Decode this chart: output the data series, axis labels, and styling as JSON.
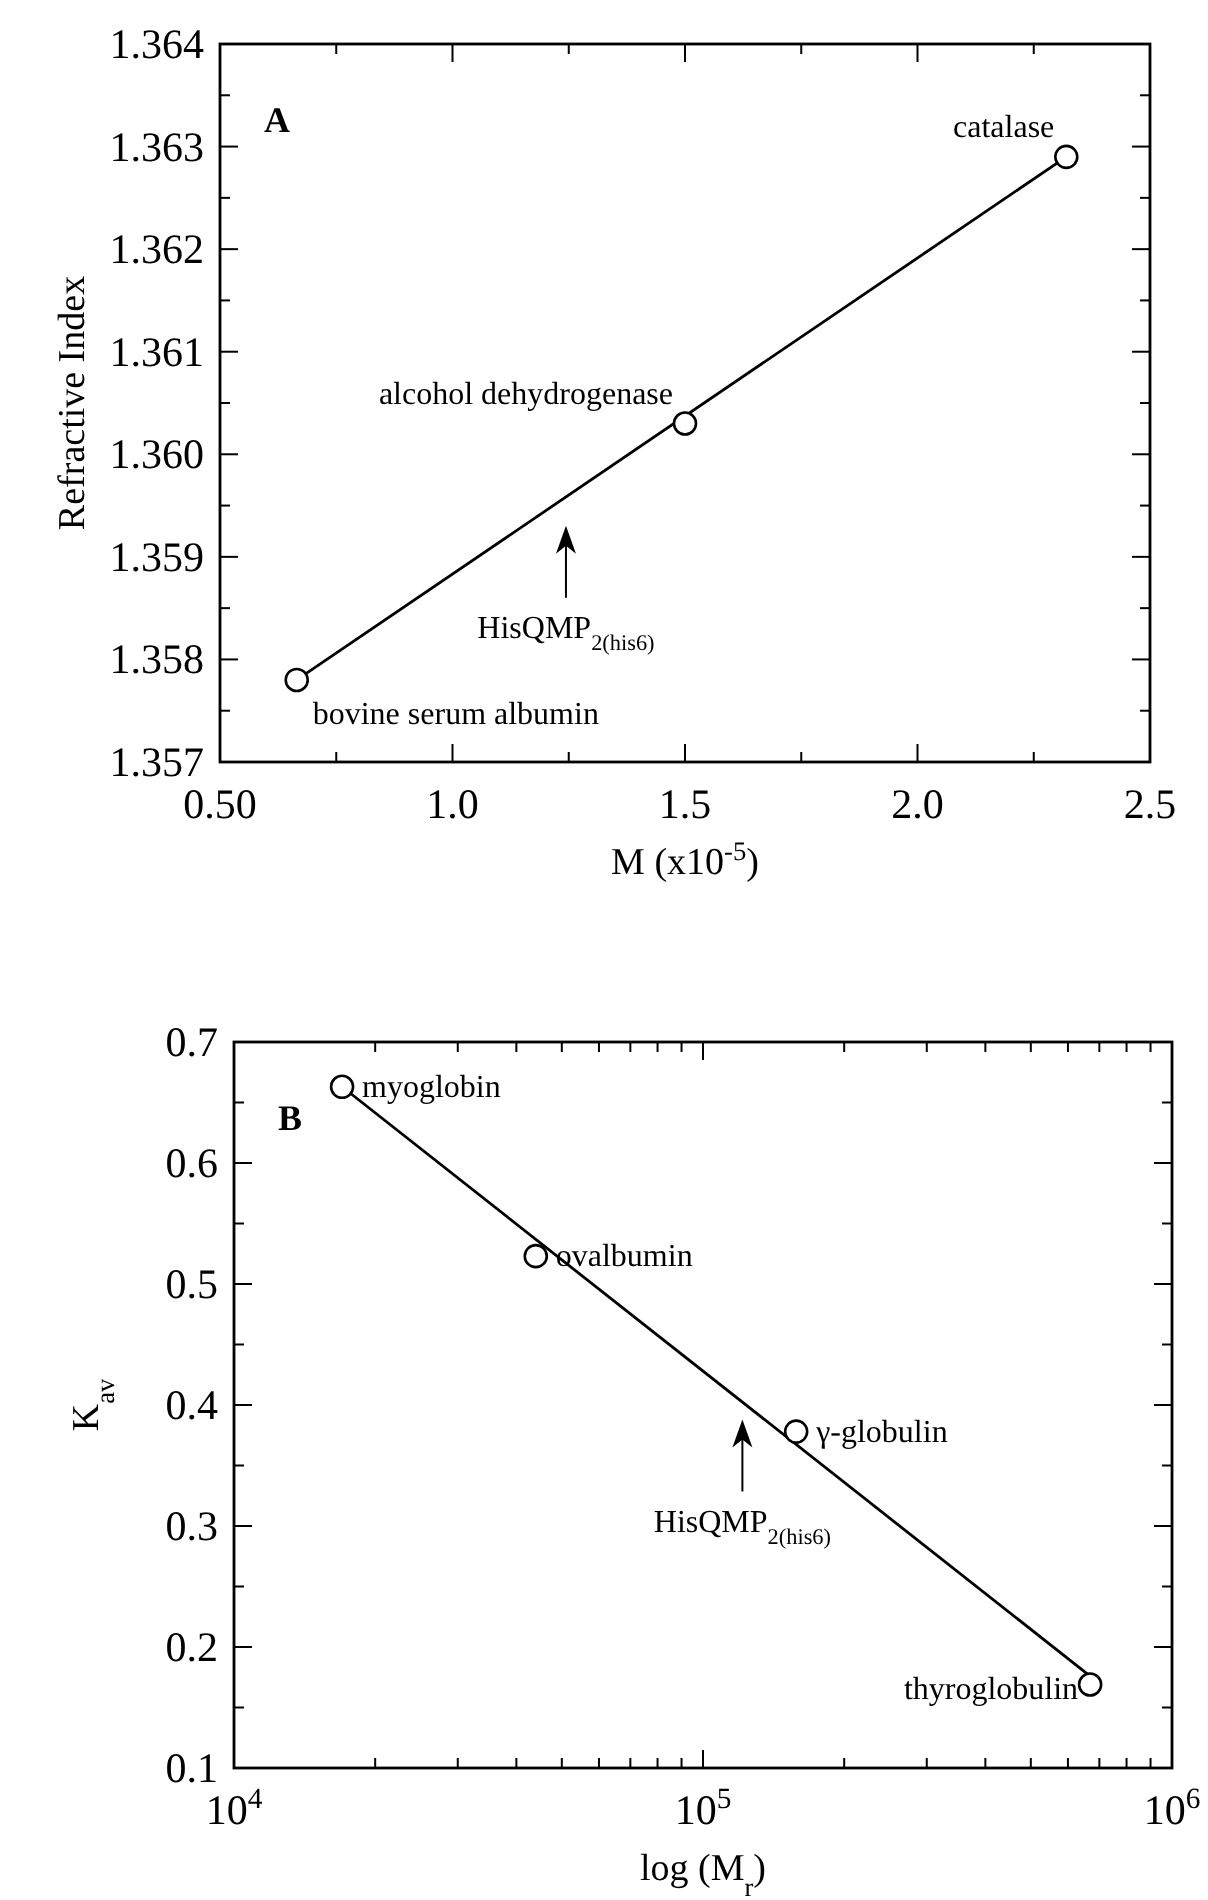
{
  "chart_data": [
    {
      "type": "scatter",
      "xlabel": "M  (x10$^{-5}$)",
      "ylabel": "Refractive Index",
      "xlim": [
        0.5,
        2.5
      ],
      "ylim": [
        1.357,
        1.364
      ],
      "xticks": [
        {
          "value": 0.5,
          "label": "0.50"
        },
        {
          "value": 1.0,
          "label": "1.0"
        },
        {
          "value": 1.5,
          "label": "1.5"
        },
        {
          "value": 2.0,
          "label": "2.0"
        },
        {
          "value": 2.5,
          "label": "2.5"
        }
      ],
      "yticks": [
        {
          "value": 1.357,
          "label": "1.357"
        },
        {
          "value": 1.358,
          "label": "1.358"
        },
        {
          "value": 1.359,
          "label": "1.359"
        },
        {
          "value": 1.36,
          "label": "1.360"
        },
        {
          "value": 1.361,
          "label": "1.361"
        },
        {
          "value": 1.362,
          "label": "1.362"
        },
        {
          "value": 1.363,
          "label": "1.363"
        },
        {
          "value": 1.364,
          "label": "1.364"
        }
      ],
      "grid": false,
      "series": [
        {
          "type": "scatter",
          "color": "#000000",
          "marker": "circle",
          "x": [
            0.665,
            1.5,
            2.32
          ],
          "values": [
            1.3578,
            1.3603,
            1.3629
          ]
        },
        {
          "type": "line",
          "color": "#000000",
          "marker": "none",
          "line_style": "solid",
          "x": [
            0.665,
            2.32
          ],
          "values": [
            1.3578,
            1.3629
          ]
        }
      ],
      "annotations": [
        "A",
        {
          "text": "bovine serum albumin",
          "x": 0.665,
          "y": 1.3578
        },
        {
          "text": "alcohol dehydrogenase",
          "x": 1.5,
          "y": 1.3603
        },
        {
          "text": "catalase",
          "x": 2.32,
          "y": 1.3629
        },
        "HisQMP$_{2(his6)}$"
      ]
    },
    {
      "type": "scatter",
      "xlabel": "log (M$_{r}$)",
      "ylabel": "K$_{av}$",
      "log": "x",
      "xlim": [
        10000,
        1000000
      ],
      "ylim": [
        0.1,
        0.7
      ],
      "xticks": [
        {
          "value": 10000,
          "label": "10$^{4}$"
        },
        {
          "value": 100000,
          "label": "10$^{5}$"
        },
        {
          "value": 1000000,
          "label": "10$^{6}$"
        }
      ],
      "yticks": [
        0.1,
        0.2,
        0.3,
        0.4,
        0.5,
        0.6,
        0.7
      ],
      "grid": false,
      "series": [
        {
          "type": "scatter",
          "color": "#000000",
          "marker": "circle",
          "x": [
            17000,
            44000,
            158000,
            669000
          ],
          "values": [
            0.663,
            0.523,
            0.378,
            0.169
          ]
        },
        {
          "type": "line",
          "color": "#000000",
          "marker": "none",
          "line_style": "solid",
          "x": [
            17000,
            669000
          ],
          "values": [
            0.663,
            0.176
          ]
        }
      ],
      "annotations": [
        "B",
        {
          "text": "myoglobin",
          "x": 17000,
          "y": 0.663
        },
        {
          "text": "ovalbumin",
          "x": 44000,
          "y": 0.523
        },
        {
          "text": "γ-globulin",
          "x": 158000,
          "y": 0.378
        },
        {
          "text": "thyroglobulin",
          "x": 669000,
          "y": 0.169
        },
        "HisQMP$_{2(his6)}$"
      ]
    }
  ]
}
